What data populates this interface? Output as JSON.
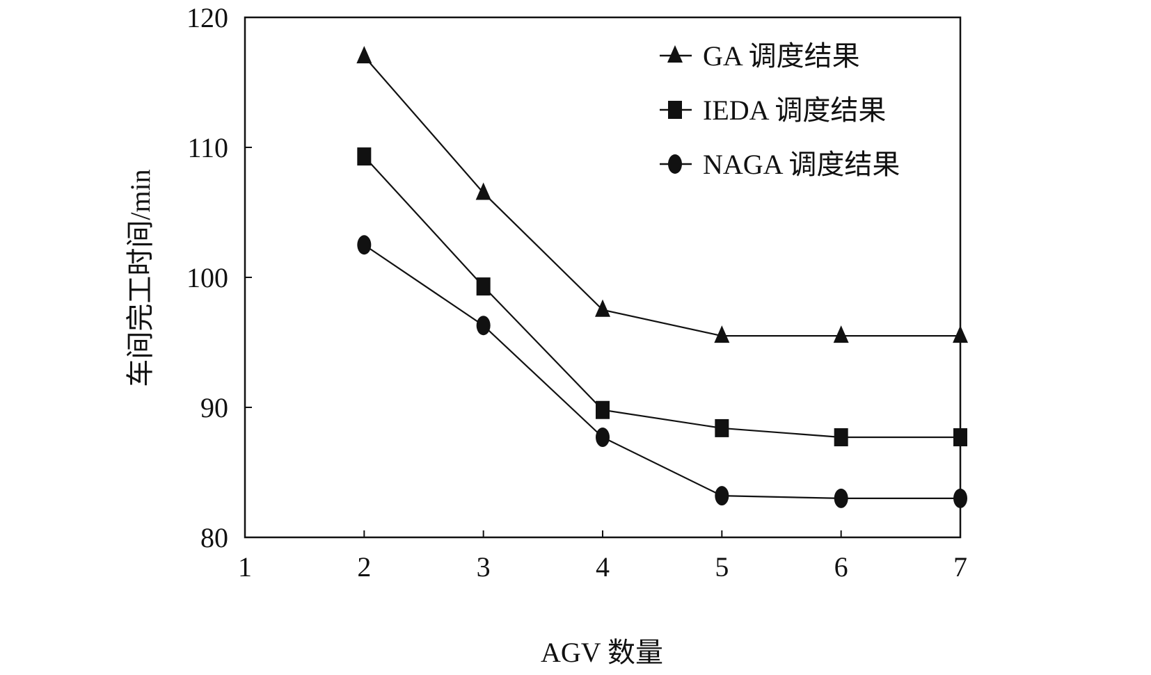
{
  "chart_data": {
    "type": "line",
    "title": "",
    "xlabel": "AGV 数量",
    "ylabel": "车间完工时间/min",
    "xlim": [
      1,
      7
    ],
    "ylim": [
      80,
      120
    ],
    "xticks": [
      1,
      2,
      3,
      4,
      5,
      6,
      7
    ],
    "yticks": [
      80,
      90,
      100,
      110,
      120
    ],
    "x": [
      2,
      3,
      4,
      5,
      6,
      7
    ],
    "series": [
      {
        "name": "GA 调度结果",
        "marker": "triangle",
        "values": [
          117,
          106.5,
          97.5,
          95.5,
          95.5,
          95.5
        ]
      },
      {
        "name": "IEDA 调度结果",
        "marker": "square",
        "values": [
          109.3,
          99.3,
          89.8,
          88.4,
          87.7,
          87.7
        ]
      },
      {
        "name": "NAGA 调度结果",
        "marker": "circle",
        "values": [
          102.5,
          96.3,
          87.7,
          83.2,
          83.0,
          83.0
        ]
      }
    ],
    "grid": false,
    "legend_position": "top-right",
    "colors": {
      "line": "#111111",
      "marker": "#111111",
      "axis": "#111111"
    }
  }
}
